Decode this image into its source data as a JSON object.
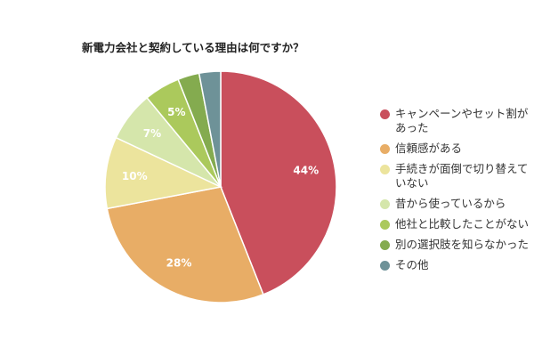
{
  "chart_data": {
    "type": "pie",
    "title": "新電力会社と契約している理由は何ですか？",
    "categories": [
      "キャンペーンやセット割があった",
      "信頼感がある",
      "手続きが面倒で切り替えていない",
      "昔から使っているから",
      "他社と比較したことがない",
      "別の選択肢を知らなかった",
      "その他"
    ],
    "values": [
      44,
      28,
      10,
      7,
      5,
      3,
      3
    ],
    "data_labels": [
      "44%",
      "28%",
      "10%",
      "7%",
      "5%",
      "",
      ""
    ],
    "colors": [
      "#c94f5c",
      "#e8ad66",
      "#ece49d",
      "#d5e6ab",
      "#abc95c",
      "#84ab4f",
      "#6e9298"
    ],
    "label_color": "#ffffff",
    "legend_placement": "right"
  }
}
